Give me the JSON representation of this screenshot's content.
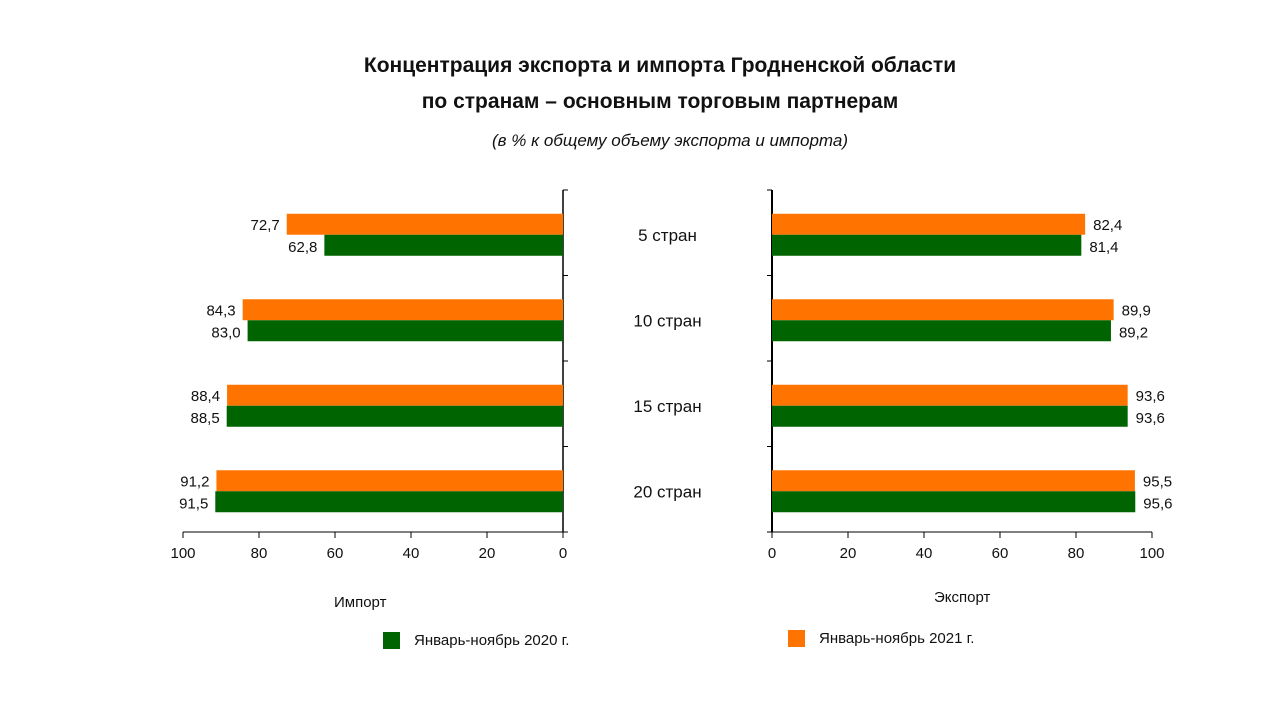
{
  "chart_data": {
    "type": "bar",
    "title_line1": "Концентрация экспорта и импорта Гродненской области",
    "title_line2": "по странам – основным торговым партнерам",
    "subtitle": "(в % к общему объему экспорта и импорта)",
    "categories": [
      "5 стран",
      "10 стран",
      "15 стран",
      "20 стран"
    ],
    "colors": {
      "2020": "#006400",
      "2021": "#ff7300"
    },
    "legend": {
      "2020": "Январь-ноябрь 2020 г.",
      "2021": "Январь-ноябрь 2021 г."
    },
    "import": {
      "xlabel": "Импорт",
      "xlim": [
        100,
        0
      ],
      "ticks": [
        100,
        80,
        60,
        40,
        20,
        0
      ],
      "series_2020": [
        62.8,
        83.0,
        88.5,
        91.5
      ],
      "series_2021": [
        72.7,
        84.3,
        88.4,
        91.2
      ],
      "labels_2020": [
        "62,8",
        "83,0",
        "88,5",
        "91,5"
      ],
      "labels_2021": [
        "72,7",
        "84,3",
        "88,4",
        "91,2"
      ]
    },
    "export": {
      "xlabel": "Экспорт",
      "xlim": [
        0,
        100
      ],
      "ticks": [
        0,
        20,
        40,
        60,
        80,
        100
      ],
      "series_2020": [
        81.4,
        89.2,
        93.6,
        95.6
      ],
      "series_2021": [
        82.4,
        89.9,
        93.6,
        95.5
      ],
      "labels_2020": [
        "81,4",
        "89,2",
        "93,6",
        "95,6"
      ],
      "labels_2021": [
        "82,4",
        "89,9",
        "93,6",
        "95,5"
      ]
    }
  }
}
